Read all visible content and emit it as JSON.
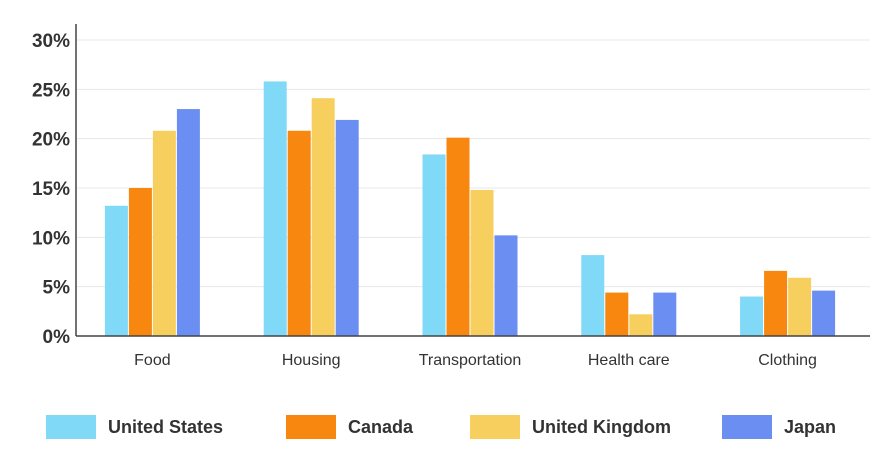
{
  "chart_data": {
    "type": "bar",
    "categories": [
      "Food",
      "Housing",
      "Transportation",
      "Health care",
      "Clothing"
    ],
    "series": [
      {
        "name": "United States",
        "color": "#7fd9f7",
        "values": [
          13.2,
          25.8,
          18.4,
          8.2,
          4.0
        ]
      },
      {
        "name": "Canada",
        "color": "#f7870f",
        "values": [
          15.0,
          20.8,
          20.1,
          4.4,
          6.6
        ]
      },
      {
        "name": "United Kingdom",
        "color": "#f7cf5f",
        "values": [
          20.8,
          24.1,
          14.8,
          2.2,
          5.9
        ]
      },
      {
        "name": "Japan",
        "color": "#6b8ef2",
        "values": [
          23.0,
          21.9,
          10.2,
          4.4,
          4.6
        ]
      }
    ],
    "ylim": [
      0,
      30
    ],
    "yticks": [
      "0%",
      "5%",
      "10%",
      "15%",
      "20%",
      "25%",
      "30%"
    ],
    "grid": true,
    "legend_position": "bottom"
  }
}
